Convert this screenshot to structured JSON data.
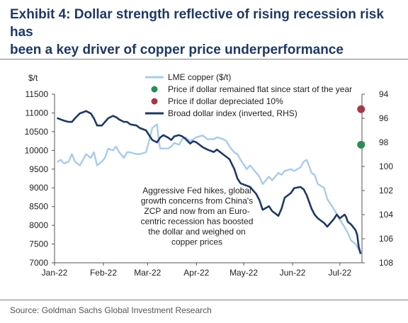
{
  "title_line1": "Exhibit 4: Dollar strength reflective of rising recession risk has",
  "title_line2": "been a key driver of copper price underperformance",
  "source": "Source: Goldman Sachs Global Investment Research",
  "colors": {
    "copper": "#a9cbe9",
    "dollar": "#1f3864",
    "green": "#2e8b57",
    "red": "#a23a45",
    "title": "#1f3864"
  },
  "chart_data": {
    "type": "line",
    "ylabel_left": "$/t",
    "y_left_lim": [
      7000,
      11500
    ],
    "y_left_ticks": [
      "7000",
      "7500",
      "8000",
      "8500",
      "9000",
      "9500",
      "10000",
      "10500",
      "11000",
      "11500"
    ],
    "y_right_lim": [
      108,
      94
    ],
    "y_right_inverted": true,
    "y_right_ticks": [
      "94",
      "96",
      "98",
      "100",
      "102",
      "104",
      "106",
      "108"
    ],
    "x_range": [
      "2022-01-01",
      "2022-07-15"
    ],
    "x_tick_labels": [
      "Jan-22",
      "Feb-22",
      "Mar-22",
      "Apr-22",
      "May-22",
      "Jun-22",
      "Jul-22"
    ],
    "legend": {
      "position": "top-right",
      "entries": [
        "LME copper ($/t)",
        "Price if dollar remained flat since start of the year",
        "Price if dollar depreciated 10%",
        "Broad dollar index (inverted, RHS)"
      ]
    },
    "annotation": [
      "Aggressive Fed hikes, global",
      "growth concerns from China's",
      "ZCP and now from an Euro-",
      "centric recession has boosted",
      "the dollar and weighed on",
      "copper prices"
    ],
    "series": [
      {
        "name": "LME copper ($/t)",
        "axis": "left",
        "points": [
          [
            "2022-01-03",
            9700
          ],
          [
            "2022-01-05",
            9750
          ],
          [
            "2022-01-07",
            9650
          ],
          [
            "2022-01-10",
            9700
          ],
          [
            "2022-01-12",
            9900
          ],
          [
            "2022-01-14",
            9700
          ],
          [
            "2022-01-17",
            9600
          ],
          [
            "2022-01-19",
            9750
          ],
          [
            "2022-01-21",
            9900
          ],
          [
            "2022-01-24",
            9800
          ],
          [
            "2022-01-26",
            9950
          ],
          [
            "2022-01-28",
            9600
          ],
          [
            "2022-01-31",
            9700
          ],
          [
            "2022-02-02",
            9800
          ],
          [
            "2022-02-04",
            10050
          ],
          [
            "2022-02-07",
            10000
          ],
          [
            "2022-02-09",
            10100
          ],
          [
            "2022-02-11",
            9950
          ],
          [
            "2022-02-14",
            9800
          ],
          [
            "2022-02-16",
            9950
          ],
          [
            "2022-02-18",
            9950
          ],
          [
            "2022-02-22",
            9900
          ],
          [
            "2022-02-24",
            9900
          ],
          [
            "2022-02-28",
            9950
          ],
          [
            "2022-03-02",
            10250
          ],
          [
            "2022-03-04",
            10600
          ],
          [
            "2022-03-07",
            10700
          ],
          [
            "2022-03-08",
            10300
          ],
          [
            "2022-03-09",
            10050
          ],
          [
            "2022-03-11",
            10050
          ],
          [
            "2022-03-14",
            10050
          ],
          [
            "2022-03-16",
            10100
          ],
          [
            "2022-03-18",
            10200
          ],
          [
            "2022-03-21",
            10150
          ],
          [
            "2022-03-23",
            10300
          ],
          [
            "2022-03-25",
            10350
          ],
          [
            "2022-03-28",
            10250
          ],
          [
            "2022-03-30",
            10300
          ],
          [
            "2022-04-01",
            10350
          ],
          [
            "2022-04-05",
            10400
          ],
          [
            "2022-04-08",
            10300
          ],
          [
            "2022-04-12",
            10300
          ],
          [
            "2022-04-14",
            10350
          ],
          [
            "2022-04-18",
            10300
          ],
          [
            "2022-04-20",
            10250
          ],
          [
            "2022-04-22",
            10100
          ],
          [
            "2022-04-25",
            9950
          ],
          [
            "2022-04-27",
            9900
          ],
          [
            "2022-04-29",
            9750
          ],
          [
            "2022-05-03",
            9500
          ],
          [
            "2022-05-05",
            9600
          ],
          [
            "2022-05-09",
            9400
          ],
          [
            "2022-05-11",
            9300
          ],
          [
            "2022-05-13",
            9100
          ],
          [
            "2022-05-17",
            9300
          ],
          [
            "2022-05-19",
            9200
          ],
          [
            "2022-05-23",
            9400
          ],
          [
            "2022-05-25",
            9350
          ],
          [
            "2022-05-27",
            9450
          ],
          [
            "2022-05-31",
            9500
          ],
          [
            "2022-06-02",
            9450
          ],
          [
            "2022-06-06",
            9550
          ],
          [
            "2022-06-08",
            9700
          ],
          [
            "2022-06-10",
            9750
          ],
          [
            "2022-06-13",
            9400
          ],
          [
            "2022-06-15",
            9350
          ],
          [
            "2022-06-17",
            9100
          ],
          [
            "2022-06-21",
            9000
          ],
          [
            "2022-06-23",
            8700
          ],
          [
            "2022-06-27",
            8450
          ],
          [
            "2022-06-29",
            8300
          ],
          [
            "2022-07-01",
            8150
          ],
          [
            "2022-07-04",
            7950
          ],
          [
            "2022-07-06",
            7800
          ],
          [
            "2022-07-08",
            7600
          ],
          [
            "2022-07-11",
            7500
          ],
          [
            "2022-07-13",
            7350
          ],
          [
            "2022-07-14",
            7300
          ]
        ]
      },
      {
        "name": "Broad dollar index (inverted, RHS)",
        "axis": "right",
        "points": [
          [
            "2022-01-03",
            96.0
          ],
          [
            "2022-01-05",
            96.1
          ],
          [
            "2022-01-07",
            96.2
          ],
          [
            "2022-01-10",
            96.3
          ],
          [
            "2022-01-12",
            96.3
          ],
          [
            "2022-01-14",
            96.0
          ],
          [
            "2022-01-17",
            95.6
          ],
          [
            "2022-01-19",
            95.5
          ],
          [
            "2022-01-21",
            95.4
          ],
          [
            "2022-01-24",
            95.6
          ],
          [
            "2022-01-26",
            96.0
          ],
          [
            "2022-01-28",
            96.6
          ],
          [
            "2022-01-31",
            96.6
          ],
          [
            "2022-02-02",
            96.3
          ],
          [
            "2022-02-04",
            96.0
          ],
          [
            "2022-02-07",
            95.8
          ],
          [
            "2022-02-09",
            95.9
          ],
          [
            "2022-02-11",
            96.1
          ],
          [
            "2022-02-14",
            96.3
          ],
          [
            "2022-02-16",
            96.3
          ],
          [
            "2022-02-18",
            96.5
          ],
          [
            "2022-02-22",
            96.6
          ],
          [
            "2022-02-24",
            96.8
          ],
          [
            "2022-02-28",
            97.0
          ],
          [
            "2022-03-02",
            97.4
          ],
          [
            "2022-03-04",
            97.8
          ],
          [
            "2022-03-07",
            98.0
          ],
          [
            "2022-03-09",
            97.6
          ],
          [
            "2022-03-11",
            97.4
          ],
          [
            "2022-03-14",
            97.6
          ],
          [
            "2022-03-16",
            97.8
          ],
          [
            "2022-03-18",
            97.5
          ],
          [
            "2022-03-21",
            97.4
          ],
          [
            "2022-03-23",
            97.5
          ],
          [
            "2022-03-25",
            97.7
          ],
          [
            "2022-03-28",
            98.1
          ],
          [
            "2022-03-30",
            97.9
          ],
          [
            "2022-04-01",
            98.0
          ],
          [
            "2022-04-05",
            98.4
          ],
          [
            "2022-04-08",
            98.6
          ],
          [
            "2022-04-12",
            98.8
          ],
          [
            "2022-04-14",
            98.6
          ],
          [
            "2022-04-18",
            99.0
          ],
          [
            "2022-04-20",
            99.2
          ],
          [
            "2022-04-22",
            99.4
          ],
          [
            "2022-04-25",
            100.2
          ],
          [
            "2022-04-27",
            101.0
          ],
          [
            "2022-04-29",
            101.4
          ],
          [
            "2022-05-03",
            101.6
          ],
          [
            "2022-05-05",
            101.7
          ],
          [
            "2022-05-09",
            102.3
          ],
          [
            "2022-05-11",
            102.8
          ],
          [
            "2022-05-13",
            103.6
          ],
          [
            "2022-05-17",
            103.3
          ],
          [
            "2022-05-19",
            103.7
          ],
          [
            "2022-05-23",
            104.1
          ],
          [
            "2022-05-25",
            103.5
          ],
          [
            "2022-05-27",
            102.6
          ],
          [
            "2022-05-31",
            102.2
          ],
          [
            "2022-06-02",
            101.8
          ],
          [
            "2022-06-06",
            101.7
          ],
          [
            "2022-06-08",
            101.9
          ],
          [
            "2022-06-10",
            102.4
          ],
          [
            "2022-06-13",
            103.5
          ],
          [
            "2022-06-15",
            104.0
          ],
          [
            "2022-06-17",
            104.3
          ],
          [
            "2022-06-21",
            104.7
          ],
          [
            "2022-06-23",
            105.0
          ],
          [
            "2022-06-27",
            104.4
          ],
          [
            "2022-06-29",
            104.0
          ],
          [
            "2022-07-01",
            104.3
          ],
          [
            "2022-07-04",
            104.0
          ],
          [
            "2022-07-05",
            104.2
          ],
          [
            "2022-07-06",
            104.6
          ],
          [
            "2022-07-08",
            104.8
          ],
          [
            "2022-07-11",
            105.3
          ],
          [
            "2022-07-12",
            105.7
          ],
          [
            "2022-07-13",
            106.7
          ],
          [
            "2022-07-14",
            107.2
          ]
        ]
      }
    ],
    "markers": [
      {
        "name": "Price if dollar remained flat since start of the year",
        "date": "2022-07-14",
        "value": 10150,
        "color_key": "green"
      },
      {
        "name": "Price if dollar depreciated 10%",
        "date": "2022-07-14",
        "value": 11100,
        "color_key": "red"
      }
    ]
  }
}
